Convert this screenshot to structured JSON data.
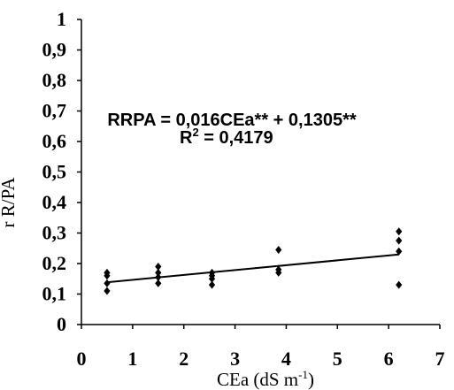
{
  "chart_data": {
    "type": "scatter",
    "xlabel": "CEa (dS m",
    "xlabel_sup": "-1",
    "xlabel_close": ")",
    "ylabel": "r R/PA",
    "xlim": [
      0,
      7
    ],
    "ylim": [
      0,
      1
    ],
    "x_ticks": [
      "0",
      "1",
      "2",
      "3",
      "4",
      "5",
      "6",
      "7"
    ],
    "y_ticks": [
      "0",
      "0,1",
      "0,2",
      "0,3",
      "0,4",
      "0,5",
      "0,6",
      "0,7",
      "0,8",
      "0,9",
      "1"
    ],
    "x_tick_values": [
      0,
      1,
      2,
      3,
      4,
      5,
      6,
      7
    ],
    "y_tick_values": [
      0,
      0.1,
      0.2,
      0.3,
      0.4,
      0.5,
      0.6,
      0.7,
      0.8,
      0.9,
      1
    ],
    "points": [
      {
        "x": 0.5,
        "y": 0.11
      },
      {
        "x": 0.5,
        "y": 0.135
      },
      {
        "x": 0.5,
        "y": 0.16
      },
      {
        "x": 0.5,
        "y": 0.17
      },
      {
        "x": 1.5,
        "y": 0.135
      },
      {
        "x": 1.5,
        "y": 0.155
      },
      {
        "x": 1.5,
        "y": 0.17
      },
      {
        "x": 1.5,
        "y": 0.19
      },
      {
        "x": 2.55,
        "y": 0.13
      },
      {
        "x": 2.55,
        "y": 0.15
      },
      {
        "x": 2.55,
        "y": 0.16
      },
      {
        "x": 2.55,
        "y": 0.17
      },
      {
        "x": 3.85,
        "y": 0.17
      },
      {
        "x": 3.85,
        "y": 0.18
      },
      {
        "x": 3.85,
        "y": 0.245
      },
      {
        "x": 6.2,
        "y": 0.13
      },
      {
        "x": 6.2,
        "y": 0.24
      },
      {
        "x": 6.2,
        "y": 0.275
      },
      {
        "x": 6.2,
        "y": 0.305
      }
    ],
    "trendline": {
      "slope": 0.016,
      "intercept": 0.1305,
      "x_range": [
        0.5,
        6.2
      ]
    },
    "annotations": {
      "equation": "RRPA = 0,016CEa** + 0,1305**",
      "r2_prefix": "R",
      "r2_sup": "2",
      "r2_value": " = 0,4179"
    },
    "marker": "diamond",
    "colors": {
      "marker": "#000000",
      "line": "#000000",
      "axis": "#000000"
    }
  }
}
